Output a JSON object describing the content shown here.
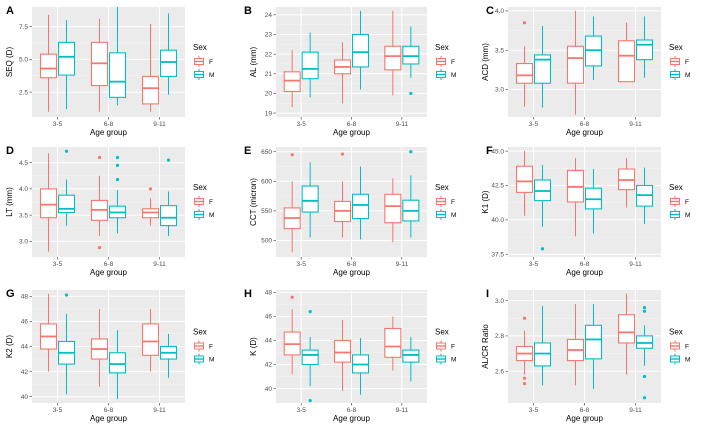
{
  "colors": {
    "F": "#F8766D",
    "M": "#00BFC4",
    "panel_bg": "#EBEBEB",
    "grid_major": "#FFFFFF",
    "grid_minor": "#F5F5F5"
  },
  "legend": {
    "title": "Sex",
    "labels": [
      "F",
      "M"
    ]
  },
  "chart_data": [
    {
      "type": "boxplot",
      "letter": "A",
      "xlabel": "Age group",
      "ylabel": "SEQ (D)",
      "categories": [
        "3-5",
        "6-8",
        "9-11"
      ],
      "ylim": [
        0.6,
        9.0
      ],
      "yticks": [
        2.5,
        5.0,
        7.5
      ],
      "ytick_labels": [
        "2.5",
        "5.0",
        "7.5"
      ],
      "series": [
        {
          "name": "F",
          "boxes": [
            {
              "min": 1.0,
              "q1": 3.6,
              "median": 4.3,
              "q3": 5.4,
              "max": 8.4,
              "outliers": []
            },
            {
              "min": 1.0,
              "q1": 3.0,
              "median": 4.7,
              "q3": 6.3,
              "max": 8.1,
              "outliers": []
            },
            {
              "min": 1.0,
              "q1": 1.6,
              "median": 2.8,
              "q3": 3.7,
              "max": 7.7,
              "outliers": []
            }
          ]
        },
        {
          "name": "M",
          "boxes": [
            {
              "min": 1.2,
              "q1": 3.8,
              "median": 5.2,
              "q3": 6.3,
              "max": 8.0,
              "outliers": []
            },
            {
              "min": 1.5,
              "q1": 2.1,
              "median": 3.3,
              "q3": 5.5,
              "max": 9.0,
              "outliers": []
            },
            {
              "min": 2.3,
              "q1": 3.7,
              "median": 4.8,
              "q3": 5.7,
              "max": 8.5,
              "outliers": []
            }
          ]
        }
      ]
    },
    {
      "type": "boxplot",
      "letter": "B",
      "xlabel": "Age group",
      "ylabel": "AL (mm)",
      "categories": [
        "3-5",
        "6-8",
        "9-11"
      ],
      "ylim": [
        18.8,
        24.4
      ],
      "yticks": [
        19,
        20,
        21,
        22,
        23,
        24
      ],
      "ytick_labels": [
        "19",
        "20",
        "21",
        "22",
        "23",
        "24"
      ],
      "series": [
        {
          "name": "F",
          "boxes": [
            {
              "min": 19.3,
              "q1": 20.1,
              "median": 20.65,
              "q3": 21.1,
              "max": 22.2,
              "outliers": []
            },
            {
              "min": 19.5,
              "q1": 21.0,
              "median": 21.35,
              "q3": 21.7,
              "max": 22.6,
              "outliers": []
            },
            {
              "min": 19.9,
              "q1": 21.2,
              "median": 21.9,
              "q3": 22.4,
              "max": 24.2,
              "outliers": []
            }
          ]
        },
        {
          "name": "M",
          "boxes": [
            {
              "min": 19.8,
              "q1": 20.75,
              "median": 21.25,
              "q3": 22.1,
              "max": 23.1,
              "outliers": []
            },
            {
              "min": 20.2,
              "q1": 21.35,
              "median": 22.1,
              "q3": 23.0,
              "max": 24.2,
              "outliers": []
            },
            {
              "min": 20.8,
              "q1": 21.5,
              "median": 21.9,
              "q3": 22.4,
              "max": 23.4,
              "outliers": [
                20.0
              ]
            }
          ]
        }
      ]
    },
    {
      "type": "boxplot",
      "letter": "C",
      "xlabel": "Age group",
      "ylabel": "ACD (mm)",
      "categories": [
        "3-5",
        "6-8",
        "9-11"
      ],
      "ylim": [
        2.65,
        4.05
      ],
      "yticks": [
        3.0,
        3.5,
        4.0
      ],
      "ytick_labels": [
        "3.0",
        "3.5",
        "4.0"
      ],
      "series": [
        {
          "name": "F",
          "boxes": [
            {
              "min": 2.78,
              "q1": 3.08,
              "median": 3.18,
              "q3": 3.33,
              "max": 3.55,
              "outliers": [
                3.85
              ]
            },
            {
              "min": 2.68,
              "q1": 3.08,
              "median": 3.4,
              "q3": 3.55,
              "max": 4.0,
              "outliers": []
            },
            {
              "min": 3.1,
              "q1": 3.1,
              "median": 3.43,
              "q3": 3.62,
              "max": 3.85,
              "outliers": []
            }
          ]
        },
        {
          "name": "M",
          "boxes": [
            {
              "min": 2.77,
              "q1": 3.08,
              "median": 3.38,
              "q3": 3.44,
              "max": 3.81,
              "outliers": []
            },
            {
              "min": 3.12,
              "q1": 3.3,
              "median": 3.5,
              "q3": 3.68,
              "max": 3.93,
              "outliers": []
            },
            {
              "min": 3.15,
              "q1": 3.38,
              "median": 3.57,
              "q3": 3.63,
              "max": 3.93,
              "outliers": []
            }
          ]
        }
      ]
    },
    {
      "type": "boxplot",
      "letter": "D",
      "xlabel": "Age group",
      "ylabel": "LT (mm)",
      "categories": [
        "3-5",
        "6-8",
        "9-11"
      ],
      "ylim": [
        2.7,
        4.8
      ],
      "yticks": [
        3.0,
        3.5,
        4.0,
        4.5
      ],
      "ytick_labels": [
        "3.0",
        "3.5",
        "4.0",
        "4.5"
      ],
      "series": [
        {
          "name": "F",
          "boxes": [
            {
              "min": 2.8,
              "q1": 3.45,
              "median": 3.7,
              "q3": 4.0,
              "max": 4.68,
              "outliers": []
            },
            {
              "min": 3.1,
              "q1": 3.4,
              "median": 3.6,
              "q3": 3.78,
              "max": 4.25,
              "outliers": [
                4.6,
                2.88
              ]
            },
            {
              "min": 3.3,
              "q1": 3.45,
              "median": 3.55,
              "q3": 3.62,
              "max": 3.82,
              "outliers": [
                4.0
              ]
            }
          ]
        },
        {
          "name": "M",
          "boxes": [
            {
              "min": 3.3,
              "q1": 3.55,
              "median": 3.62,
              "q3": 3.88,
              "max": 4.18,
              "outliers": [
                4.72
              ]
            },
            {
              "min": 3.15,
              "q1": 3.45,
              "median": 3.55,
              "q3": 3.67,
              "max": 3.98,
              "outliers": [
                4.6,
                4.45,
                4.18
              ]
            },
            {
              "min": 3.1,
              "q1": 3.3,
              "median": 3.45,
              "q3": 3.68,
              "max": 3.95,
              "outliers": [
                4.55
              ]
            }
          ]
        }
      ]
    },
    {
      "type": "boxplot",
      "letter": "E",
      "xlabel": "Age group",
      "ylabel": "CCT (micron)",
      "categories": [
        "3-5",
        "6-8",
        "9-11"
      ],
      "ylim": [
        472,
        658
      ],
      "yticks": [
        500,
        550,
        600,
        650
      ],
      "ytick_labels": [
        "500",
        "550",
        "600",
        "650"
      ],
      "series": [
        {
          "name": "F",
          "boxes": [
            {
              "min": 480,
              "q1": 520,
              "median": 538,
              "q3": 555,
              "max": 600,
              "outliers": [
                645
              ]
            },
            {
              "min": 505,
              "q1": 532,
              "median": 550,
              "q3": 566,
              "max": 600,
              "outliers": [
                646
              ]
            },
            {
              "min": 497,
              "q1": 530,
              "median": 558,
              "q3": 578,
              "max": 605,
              "outliers": []
            }
          ]
        },
        {
          "name": "M",
          "boxes": [
            {
              "min": 505,
              "q1": 548,
              "median": 567,
              "q3": 592,
              "max": 632,
              "outliers": []
            },
            {
              "min": 502,
              "q1": 537,
              "median": 560,
              "q3": 578,
              "max": 625,
              "outliers": []
            },
            {
              "min": 505,
              "q1": 533,
              "median": 550,
              "q3": 568,
              "max": 610,
              "outliers": [
                650
              ]
            }
          ]
        }
      ]
    },
    {
      "type": "boxplot",
      "letter": "F",
      "xlabel": "Age group",
      "ylabel": "K1 (D)",
      "categories": [
        "3-5",
        "6-8",
        "9-11"
      ],
      "ylim": [
        37.3,
        45.3
      ],
      "yticks": [
        37.5,
        40.0,
        42.5,
        45.0
      ],
      "ytick_labels": [
        "37.5",
        "40.0",
        "42.5",
        "45.0"
      ],
      "series": [
        {
          "name": "F",
          "boxes": [
            {
              "min": 40.3,
              "q1": 42.0,
              "median": 42.8,
              "q3": 43.9,
              "max": 45.0,
              "outliers": []
            },
            {
              "min": 38.8,
              "q1": 41.3,
              "median": 42.4,
              "q3": 43.6,
              "max": 44.5,
              "outliers": []
            },
            {
              "min": 40.9,
              "q1": 42.2,
              "median": 42.9,
              "q3": 43.7,
              "max": 44.5,
              "outliers": []
            }
          ]
        },
        {
          "name": "M",
          "boxes": [
            {
              "min": 39.5,
              "q1": 41.4,
              "median": 42.1,
              "q3": 42.9,
              "max": 44.0,
              "outliers": [
                37.9
              ]
            },
            {
              "min": 39.0,
              "q1": 40.8,
              "median": 41.5,
              "q3": 42.3,
              "max": 43.7,
              "outliers": []
            },
            {
              "min": 39.7,
              "q1": 41.0,
              "median": 41.8,
              "q3": 42.5,
              "max": 43.8,
              "outliers": []
            }
          ]
        }
      ]
    },
    {
      "type": "boxplot",
      "letter": "G",
      "xlabel": "Age group",
      "ylabel": "K2 (D)",
      "categories": [
        "3-5",
        "6-8",
        "9-11"
      ],
      "ylim": [
        39.5,
        48.5
      ],
      "yticks": [
        40,
        42,
        44,
        46,
        48
      ],
      "ytick_labels": [
        "40",
        "42",
        "44",
        "46",
        "48"
      ],
      "series": [
        {
          "name": "F",
          "boxes": [
            {
              "min": 42.0,
              "q1": 43.8,
              "median": 44.8,
              "q3": 45.8,
              "max": 48.2,
              "outliers": []
            },
            {
              "min": 40.8,
              "q1": 43.0,
              "median": 43.8,
              "q3": 44.6,
              "max": 47.0,
              "outliers": []
            },
            {
              "min": 42.0,
              "q1": 43.3,
              "median": 44.4,
              "q3": 45.8,
              "max": 47.0,
              "outliers": []
            }
          ]
        },
        {
          "name": "M",
          "boxes": [
            {
              "min": 40.2,
              "q1": 42.6,
              "median": 43.5,
              "q3": 44.4,
              "max": 46.6,
              "outliers": [
                48.1
              ]
            },
            {
              "min": 39.8,
              "q1": 41.9,
              "median": 42.6,
              "q3": 43.5,
              "max": 45.3,
              "outliers": []
            },
            {
              "min": 41.5,
              "q1": 43.0,
              "median": 43.5,
              "q3": 44.0,
              "max": 45.0,
              "outliers": []
            }
          ]
        }
      ]
    },
    {
      "type": "boxplot",
      "letter": "H",
      "xlabel": "Age group",
      "ylabel": "K (D)",
      "categories": [
        "3-5",
        "6-8",
        "9-11"
      ],
      "ylim": [
        38.8,
        48.2
      ],
      "yticks": [
        40,
        42,
        44,
        46,
        48
      ],
      "ytick_labels": [
        "40",
        "42",
        "44",
        "46",
        "48"
      ],
      "series": [
        {
          "name": "F",
          "boxes": [
            {
              "min": 41.2,
              "q1": 42.8,
              "median": 43.7,
              "q3": 44.7,
              "max": 46.6,
              "outliers": [
                47.6
              ]
            },
            {
              "min": 39.8,
              "q1": 42.2,
              "median": 43.0,
              "q3": 44.0,
              "max": 45.7,
              "outliers": []
            },
            {
              "min": 41.5,
              "q1": 42.6,
              "median": 43.5,
              "q3": 45.0,
              "max": 46.0,
              "outliers": []
            }
          ]
        },
        {
          "name": "M",
          "boxes": [
            {
              "min": 40.2,
              "q1": 42.0,
              "median": 42.8,
              "q3": 43.2,
              "max": 44.3,
              "outliers": [
                46.4,
                39.0
              ]
            },
            {
              "min": 39.5,
              "q1": 41.3,
              "median": 42.0,
              "q3": 42.8,
              "max": 44.2,
              "outliers": []
            },
            {
              "min": 40.6,
              "q1": 42.2,
              "median": 42.8,
              "q3": 43.2,
              "max": 44.3,
              "outliers": []
            }
          ]
        }
      ]
    },
    {
      "type": "boxplot",
      "letter": "I",
      "xlabel": "Age group",
      "ylabel": "AL/CR Ratio",
      "categories": [
        "3-5",
        "6-8",
        "9-11"
      ],
      "ylim": [
        2.42,
        3.06
      ],
      "yticks": [
        2.6,
        2.8,
        3.0
      ],
      "ytick_labels": [
        "2.6",
        "2.8",
        "3.0"
      ],
      "series": [
        {
          "name": "F",
          "boxes": [
            {
              "min": 2.58,
              "q1": 2.66,
              "median": 2.7,
              "q3": 2.74,
              "max": 2.83,
              "outliers": [
                2.9,
                2.56,
                2.53
              ]
            },
            {
              "min": 2.52,
              "q1": 2.66,
              "median": 2.72,
              "q3": 2.78,
              "max": 2.98,
              "outliers": []
            },
            {
              "min": 2.58,
              "q1": 2.76,
              "median": 2.82,
              "q3": 2.92,
              "max": 3.04,
              "outliers": []
            }
          ]
        },
        {
          "name": "M",
          "boxes": [
            {
              "min": 2.52,
              "q1": 2.63,
              "median": 2.7,
              "q3": 2.76,
              "max": 2.97,
              "outliers": []
            },
            {
              "min": 2.5,
              "q1": 2.67,
              "median": 2.78,
              "q3": 2.86,
              "max": 2.98,
              "outliers": []
            },
            {
              "min": 2.63,
              "q1": 2.73,
              "median": 2.76,
              "q3": 2.8,
              "max": 2.86,
              "outliers": [
                2.96,
                2.94,
                2.57,
                2.45
              ]
            }
          ]
        }
      ]
    }
  ]
}
